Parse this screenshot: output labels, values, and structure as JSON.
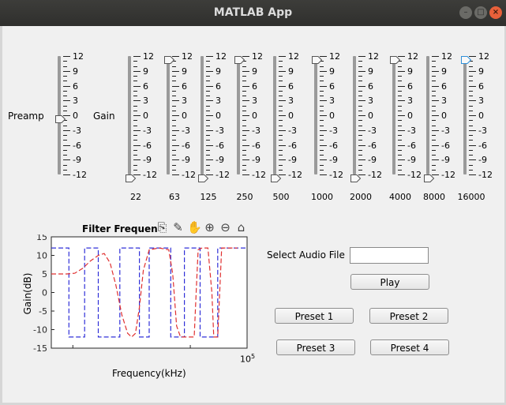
{
  "window": {
    "title": "MATLAB App"
  },
  "labels": {
    "preamp": "Preamp",
    "gain": "Gain"
  },
  "scale_ticks": [
    "12",
    "9",
    "6",
    "3",
    "0",
    "-3",
    "-6",
    "-9",
    "-12"
  ],
  "sliders": {
    "preamp": {
      "value": 0
    },
    "bands": [
      {
        "freq": "22",
        "value": -12
      },
      {
        "freq": "63",
        "value": 12
      },
      {
        "freq": "125",
        "value": -12
      },
      {
        "freq": "250",
        "value": 12
      },
      {
        "freq": "500",
        "value": -12
      },
      {
        "freq": "1000",
        "value": 12
      },
      {
        "freq": "2000",
        "value": -12
      },
      {
        "freq": "4000",
        "value": 12
      },
      {
        "freq": "8000",
        "value": -12
      },
      {
        "freq": "16000",
        "value": 12
      }
    ]
  },
  "plot": {
    "title": "Filter Frequen",
    "xlabel": "Frequency(kHz)",
    "ylabel": "Gain(dB)",
    "x_tick_label": "10",
    "x_tick_exp": "5"
  },
  "chart_data": {
    "type": "line",
    "title": "Filter Frequen",
    "xlabel": "Frequency(kHz)",
    "ylabel": "Gain(dB)",
    "ylim": [
      -15,
      15
    ],
    "yticks": [
      -15,
      -10,
      -5,
      0,
      5,
      10,
      15
    ],
    "series": [
      {
        "color": "#3030d8",
        "style": "dashed"
      },
      {
        "color": "#e03030",
        "style": "dashed"
      }
    ]
  },
  "controls": {
    "select_audio_label": "Select Audio File",
    "file_input_value": "",
    "play": "Play",
    "preset1": "Preset 1",
    "preset2": "Preset 2",
    "preset3": "Preset 3",
    "preset4": "Preset 4"
  },
  "toolbar_icons": [
    "export-icon",
    "brush-icon",
    "pan-hand-icon",
    "zoom-in-icon",
    "zoom-out-icon",
    "home-icon"
  ],
  "colors": {
    "blue": "#3030d8",
    "red": "#e03030",
    "accent": "#2f8fd8"
  }
}
